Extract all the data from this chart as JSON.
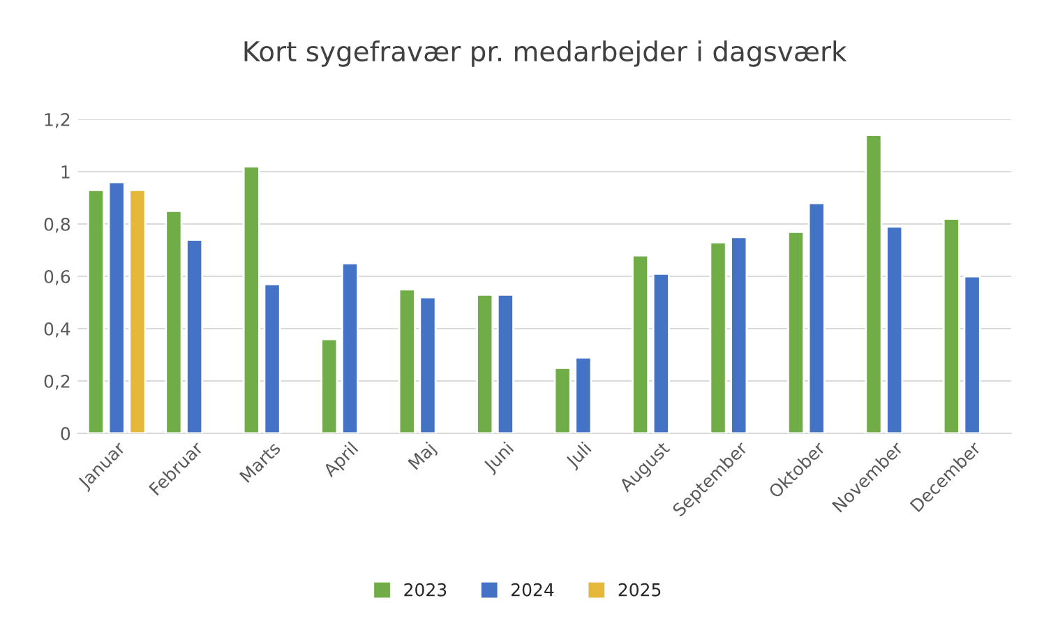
{
  "chart_data": {
    "type": "bar",
    "title": "Kort sygefravær pr. medarbejder i dagsværk",
    "categories": [
      "Januar",
      "Februar",
      "Marts",
      "April",
      "Maj",
      "Juni",
      "Juli",
      "August",
      "September",
      "Oktober",
      "November",
      "December"
    ],
    "series": [
      {
        "name": "2023",
        "color": "#70ad47",
        "values": [
          0.93,
          0.85,
          1.02,
          0.36,
          0.55,
          0.53,
          0.25,
          0.68,
          0.73,
          0.77,
          1.14,
          0.82
        ]
      },
      {
        "name": "2024",
        "color": "#4472c4",
        "values": [
          0.96,
          0.74,
          0.57,
          0.65,
          0.52,
          0.53,
          0.29,
          0.61,
          0.75,
          0.88,
          0.79,
          0.6
        ]
      },
      {
        "name": "2025",
        "color": "#e6b83a",
        "values": [
          0.93,
          null,
          null,
          null,
          null,
          null,
          null,
          null,
          null,
          null,
          null,
          null
        ]
      }
    ],
    "ylim": [
      0,
      1.2
    ],
    "yticks": [
      0,
      {
        "value": 0.2,
        "label": "0,2"
      },
      {
        "value": 0.4,
        "label": "0,4"
      },
      {
        "value": 0.6,
        "label": "0,6"
      },
      {
        "value": 0.8,
        "label": "0,8"
      },
      1,
      {
        "value": 1.2,
        "label": "1,2"
      }
    ],
    "grid": "y",
    "legend": "bottom"
  }
}
